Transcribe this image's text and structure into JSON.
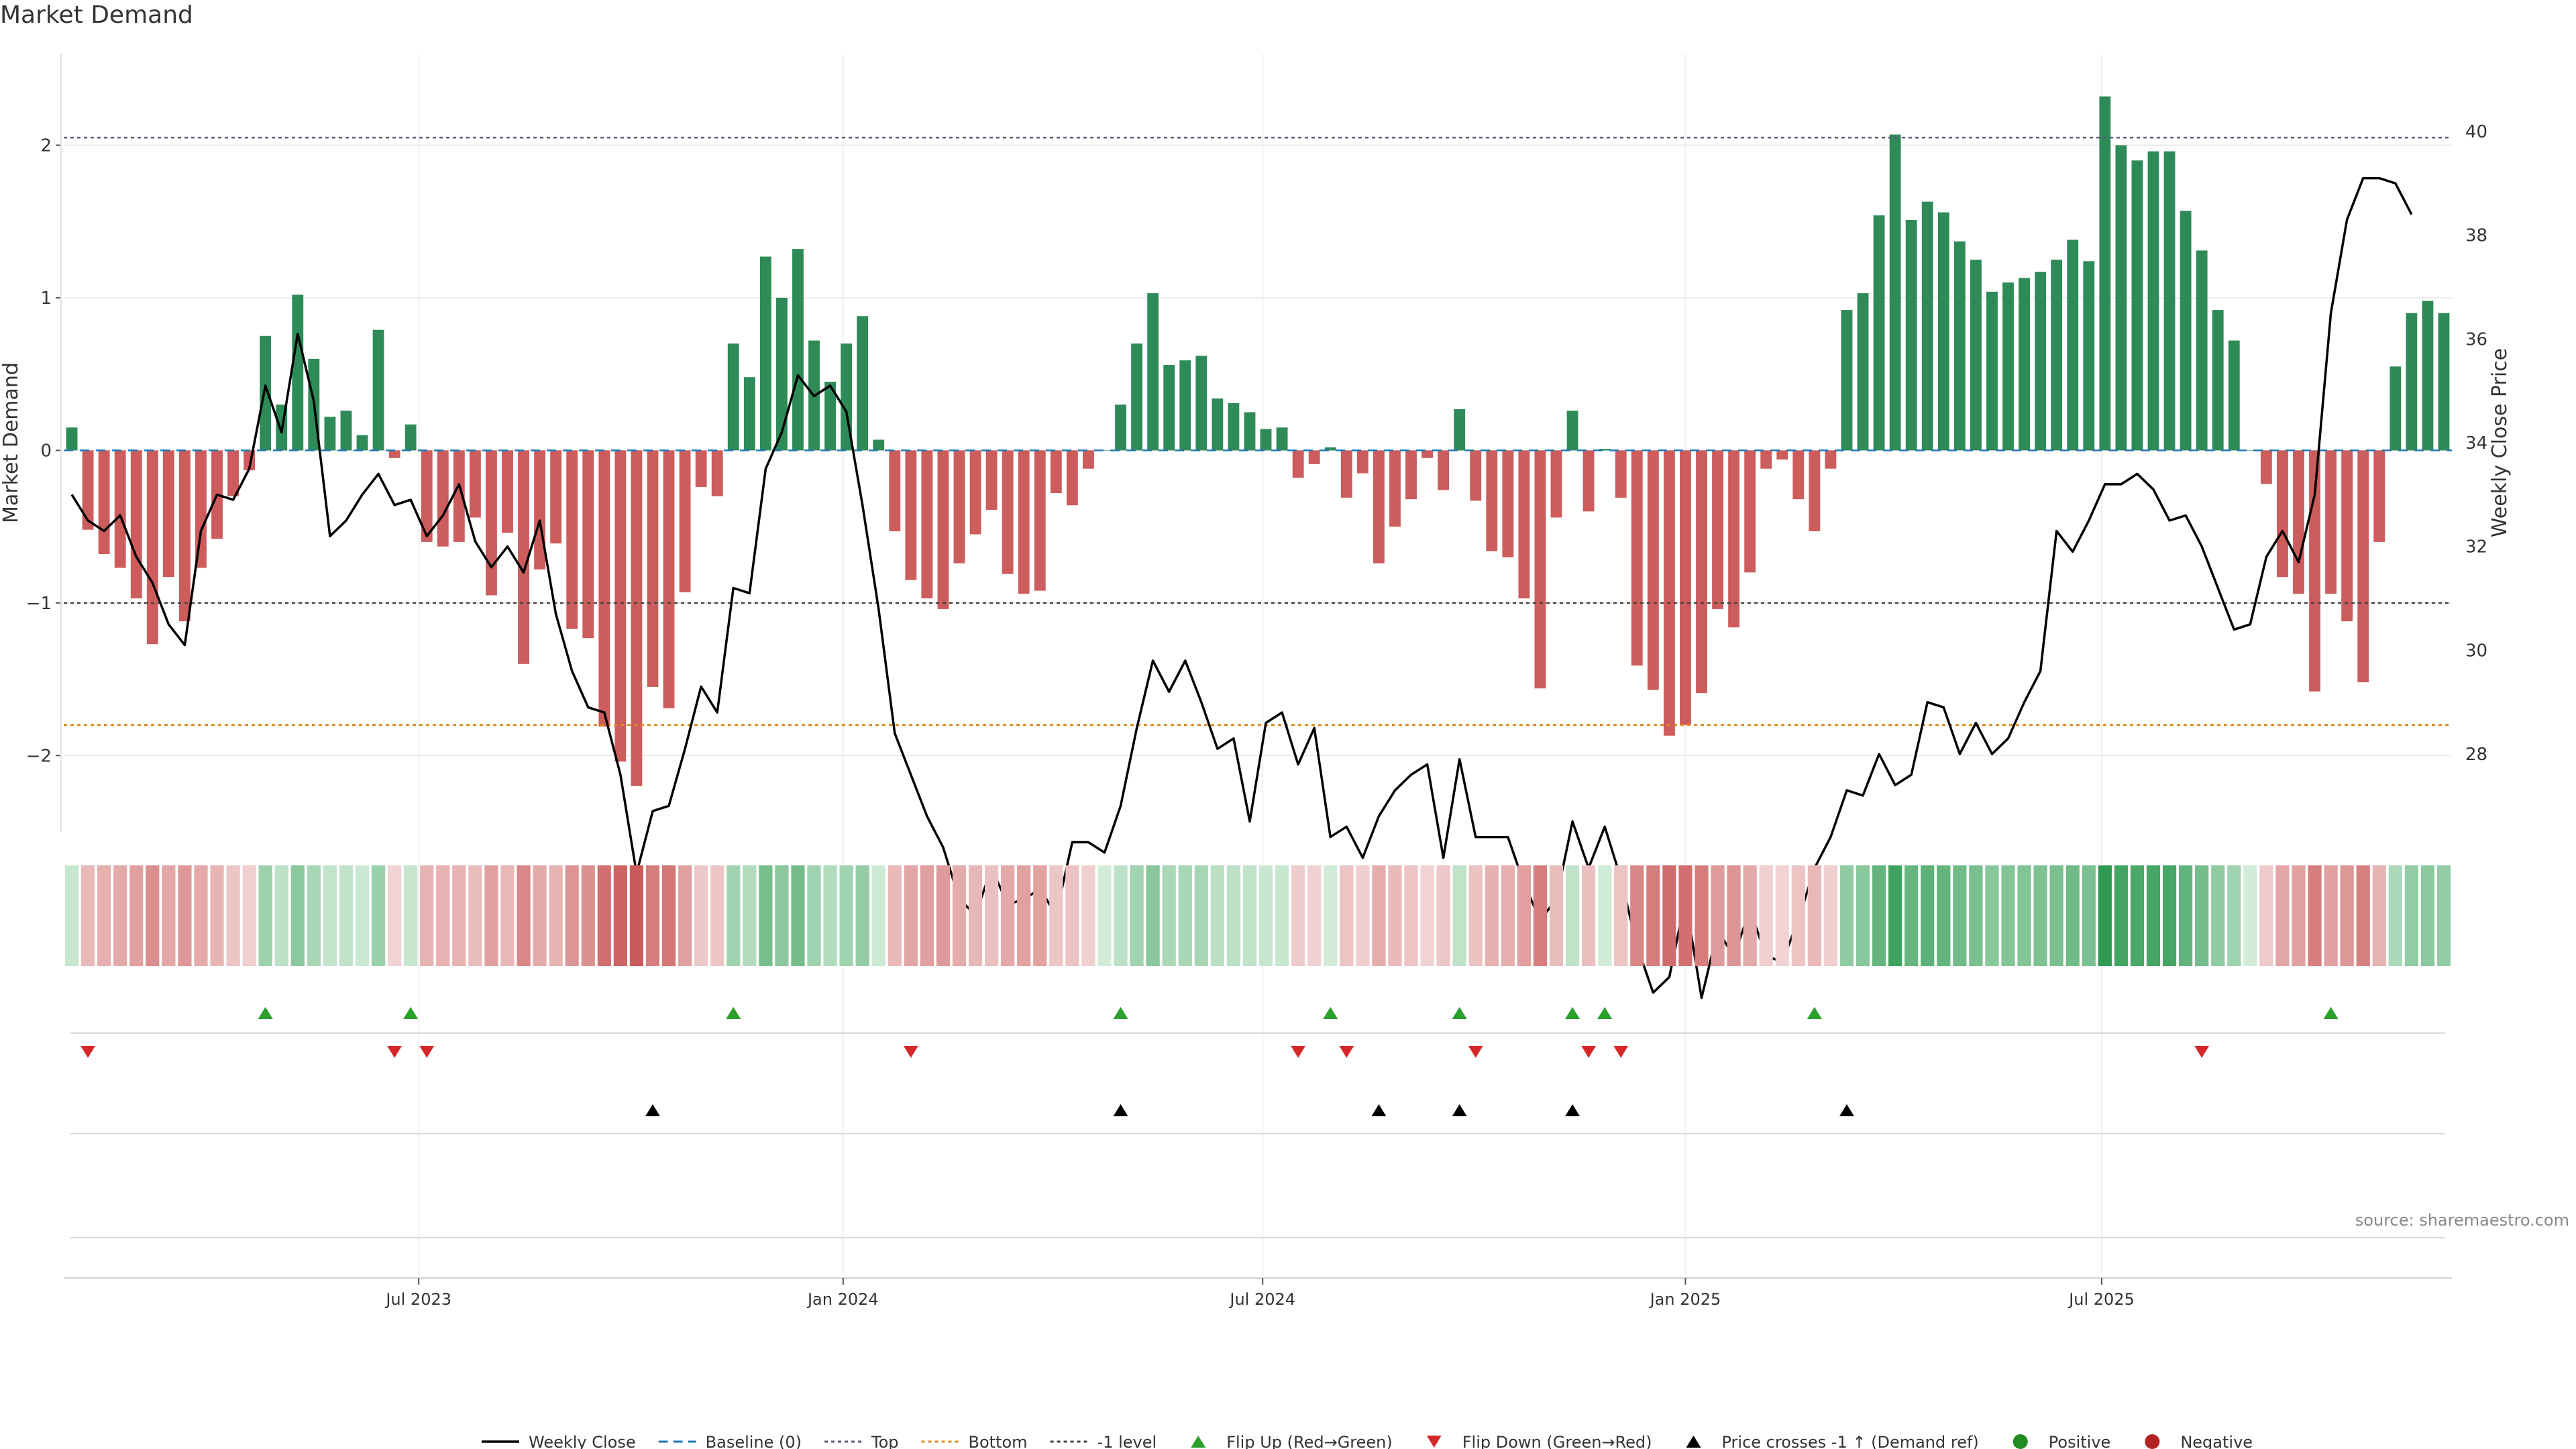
{
  "chart_data": {
    "type": "bar",
    "title": "Market Demand",
    "ylabel": "Market Demand",
    "y2label": "Weekly Close Price",
    "ylim": [
      -2.5,
      2.6
    ],
    "y2lim": [
      26.5,
      41.5
    ],
    "yticks": [
      -2,
      -1,
      0,
      1,
      2
    ],
    "y2ticks": [
      28,
      30,
      32,
      34,
      36,
      38,
      40
    ],
    "reference_lines": {
      "top": 2.05,
      "bottom": -1.8,
      "minus_one": -1.0,
      "baseline": 0
    },
    "xticks": [
      {
        "index": 22,
        "label": "Jul 2023"
      },
      {
        "index": 48.3,
        "label": "Jan 2024"
      },
      {
        "index": 74.3,
        "label": "Jul 2024"
      },
      {
        "index": 100.5,
        "label": "Jan 2025"
      },
      {
        "index": 126.3,
        "label": "Jul 2025"
      }
    ],
    "demand": [
      0.15,
      -0.52,
      -0.68,
      -0.77,
      -0.97,
      -1.27,
      -0.83,
      -1.12,
      -0.77,
      -0.58,
      -0.3,
      -0.13,
      0.75,
      0.3,
      1.02,
      0.6,
      0.22,
      0.26,
      0.1,
      0.79,
      -0.05,
      0.17,
      -0.6,
      -0.63,
      -0.6,
      -0.44,
      -0.95,
      -0.54,
      -1.4,
      -0.78,
      -0.61,
      -1.17,
      -1.23,
      -1.81,
      -2.04,
      -2.2,
      -1.55,
      -1.69,
      -0.93,
      -0.24,
      -0.3,
      0.7,
      0.48,
      1.27,
      1.0,
      1.32,
      0.72,
      0.45,
      0.7,
      0.88,
      0.07,
      -0.53,
      -0.85,
      -0.97,
      -1.04,
      -0.74,
      -0.55,
      -0.39,
      -0.81,
      -0.94,
      -0.92,
      -0.28,
      -0.36,
      -0.12,
      0.0,
      0.3,
      0.7,
      1.03,
      0.56,
      0.59,
      0.62,
      0.34,
      0.31,
      0.25,
      0.14,
      0.15,
      -0.18,
      -0.09,
      0.02,
      -0.31,
      -0.15,
      -0.74,
      -0.5,
      -0.32,
      -0.05,
      -0.26,
      0.27,
      -0.33,
      -0.66,
      -0.7,
      -0.97,
      -1.56,
      -0.44,
      0.26,
      -0.4,
      0.01,
      -0.31,
      -1.41,
      -1.57,
      -1.87,
      -1.8,
      -1.59,
      -1.04,
      -1.16,
      -0.8,
      -0.12,
      -0.06,
      -0.32,
      -0.53,
      -0.12,
      0.92,
      1.03,
      1.54,
      2.07,
      1.51,
      1.63,
      1.56,
      1.37,
      1.25,
      1.04,
      1.1,
      1.13,
      1.17,
      1.25,
      1.38,
      1.24,
      2.32,
      2.0,
      1.9,
      1.96,
      1.96,
      1.57,
      1.31,
      0.92,
      0.72,
      0.0,
      -0.22,
      -0.83,
      -0.94,
      -1.58,
      -0.94,
      -1.12,
      -1.52,
      -0.6,
      0.55,
      0.9,
      0.98,
      0.9
    ],
    "price": [
      33.0,
      32.5,
      32.3,
      32.6,
      31.8,
      31.3,
      30.5,
      30.1,
      32.3,
      33.0,
      32.9,
      33.5,
      35.1,
      34.2,
      36.1,
      34.8,
      32.2,
      32.5,
      33.0,
      33.4,
      32.8,
      32.9,
      32.2,
      32.6,
      33.2,
      32.1,
      31.6,
      32.0,
      31.5,
      32.5,
      30.7,
      29.6,
      28.9,
      28.8,
      27.6,
      25.7,
      26.9,
      27.0,
      28.1,
      29.3,
      28.8,
      31.2,
      31.1,
      33.5,
      34.2,
      35.3,
      34.9,
      35.1,
      34.6,
      32.8,
      30.8,
      28.4,
      27.6,
      26.8,
      26.2,
      25.2,
      24.9,
      25.8,
      25.1,
      25.2,
      25.4,
      24.9,
      26.3,
      26.3,
      26.1,
      27.0,
      28.5,
      29.8,
      29.2,
      29.8,
      29.0,
      28.1,
      28.3,
      26.7,
      28.6,
      28.8,
      27.8,
      28.5,
      26.4,
      26.6,
      26.0,
      26.8,
      27.3,
      27.6,
      27.8,
      26.0,
      27.9,
      26.4,
      26.4,
      26.4,
      25.5,
      24.8,
      25.2,
      26.7,
      25.8,
      26.6,
      25.6,
      24.3,
      23.4,
      23.7,
      25.2,
      23.3,
      24.6,
      24.1,
      25.0,
      24.1,
      24.0,
      24.8,
      25.8,
      26.4,
      27.3,
      27.2,
      28.0,
      27.4,
      27.6,
      29.0,
      28.9,
      28.0,
      28.6,
      28.0,
      28.3,
      29.0,
      29.6,
      32.3,
      31.9,
      32.5,
      33.2,
      33.2,
      33.4,
      33.1,
      32.5,
      32.6,
      32.0,
      31.2,
      30.4,
      30.5,
      31.8,
      32.3,
      31.7,
      33.0,
      36.5,
      38.3,
      39.1,
      39.1,
      39.0,
      38.4
    ]
  },
  "markers": {
    "flip_up": [
      12,
      21,
      41,
      65,
      78,
      86,
      93,
      95,
      108,
      140
    ],
    "flip_down": [
      1,
      20,
      22,
      52,
      76,
      79,
      87,
      94,
      96,
      132
    ],
    "price_cross": [
      36,
      65,
      81,
      86,
      93,
      110
    ]
  },
  "legend": [
    {
      "label": "Weekly Close",
      "kind": "line",
      "color": "#000000"
    },
    {
      "label": "Baseline (0)",
      "kind": "dashed",
      "color": "#1f77b4"
    },
    {
      "label": "Top",
      "kind": "dotted",
      "color": "#5a5a7a"
    },
    {
      "label": "Bottom",
      "kind": "dotted",
      "color": "#e08a1e"
    },
    {
      "label": "-1 level",
      "kind": "dotted",
      "color": "#444444"
    },
    {
      "label": "Flip Up (Red→Green)",
      "kind": "triangle-up",
      "color": "#2ca02c"
    },
    {
      "label": "Flip Down (Green→Red)",
      "kind": "triangle-down",
      "color": "#d62728"
    },
    {
      "label": "Price crosses -1 ↑ (Demand ref)",
      "kind": "triangle-up",
      "color": "#000000"
    },
    {
      "label": "Positive",
      "kind": "circle",
      "color": "#228b22"
    },
    {
      "label": "Negative",
      "kind": "circle",
      "color": "#b22222"
    }
  ],
  "colors": {
    "positive": "#2e8b57",
    "negative": "#cd5c5c",
    "grid": "#ebebeb"
  },
  "source": "source: sharemaestro.com"
}
